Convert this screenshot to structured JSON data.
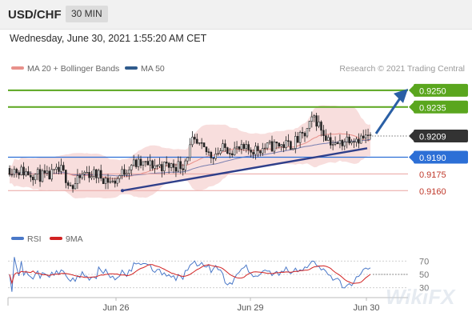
{
  "header": {
    "symbol": "USD/CHF",
    "timeframe": "30 MIN"
  },
  "datetime": "Wednesday, June 30, 2021 1:55:20 AM CET",
  "legend": [
    {
      "label": "MA 20 + Bollinger Bands",
      "color": "#e8918b"
    },
    {
      "label": "MA 50",
      "color": "#2f5b8c"
    }
  ],
  "copyright": "Research © 2021 Trading Central",
  "watermark": "WikiFX",
  "chart_data": [
    {
      "type": "candlestick",
      "x_ticks": [
        "Jun 26",
        "Jun 29",
        "Jun 30"
      ],
      "y_range": [
        0.9125,
        0.9265
      ],
      "bollinger_color": "#f5d3d1",
      "levels": [
        {
          "value": "0.9250",
          "style": "resistance",
          "color": "#5aa61e"
        },
        {
          "value": "0.9235",
          "style": "resistance",
          "color": "#5aa61e"
        },
        {
          "value": "0.9209",
          "style": "last",
          "color": "#333333"
        },
        {
          "value": "0.9190",
          "style": "pivot",
          "color": "#2c6fd6"
        },
        {
          "value": "0.9175",
          "style": "support",
          "color": "#c0392b"
        },
        {
          "value": "0.9160",
          "style": "support",
          "color": "#c0392b"
        }
      ],
      "trendline": {
        "from": 0.916,
        "to": 0.9198
      },
      "forecast_target": 0.925
    },
    {
      "type": "line",
      "title": "RSI",
      "series": [
        {
          "name": "RSI",
          "color": "#4a78c8"
        },
        {
          "name": "9MA",
          "color": "#d22222"
        }
      ],
      "y_ticks": [
        "70",
        "50",
        "30"
      ],
      "ylim": [
        20,
        80
      ]
    }
  ]
}
